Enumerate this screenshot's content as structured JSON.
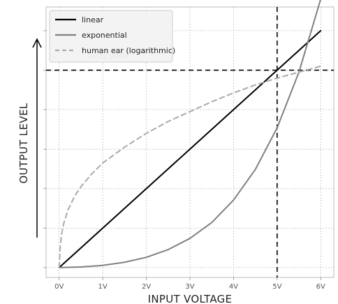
{
  "chart_data": {
    "type": "line",
    "xlabel": "INPUT VOLTAGE",
    "ylabel": "OUTPUT LEVEL",
    "x_ticks": [
      "0V",
      "1V",
      "2V",
      "3V",
      "4V",
      "5V",
      "6V"
    ],
    "xlim": [
      -0.3,
      6.3
    ],
    "ylim": [
      -0.05,
      1.32
    ],
    "grid": true,
    "y_tick_labels_shown": false,
    "legend": "top-left",
    "series": [
      {
        "name": "linear",
        "color": "#000000",
        "dash": "solid",
        "x": [
          0,
          1,
          2,
          3,
          4,
          5,
          6
        ],
        "y": [
          0,
          0.2,
          0.4,
          0.6,
          0.8,
          1.0,
          1.2
        ]
      },
      {
        "name": "exponential",
        "color": "#808080",
        "dash": "solid",
        "x": [
          0,
          0.5,
          1,
          1.5,
          2,
          2.5,
          3,
          3.5,
          4,
          4.5,
          5,
          5.5,
          6
        ],
        "y": [
          0,
          0.003,
          0.011,
          0.027,
          0.052,
          0.091,
          0.148,
          0.228,
          0.342,
          0.497,
          0.708,
          0.99,
          1.36
        ]
      },
      {
        "name": "human ear (logarithmic)",
        "color": "#aaaaaa",
        "dash": "dashed",
        "x": [
          0,
          0.02,
          0.05,
          0.1,
          0.2,
          0.35,
          0.5,
          0.75,
          1,
          1.5,
          2,
          2.5,
          3,
          3.5,
          4,
          4.5,
          5,
          5.5,
          6
        ],
        "y": [
          0,
          0.09,
          0.16,
          0.22,
          0.29,
          0.36,
          0.41,
          0.475,
          0.53,
          0.61,
          0.68,
          0.74,
          0.79,
          0.84,
          0.885,
          0.925,
          0.96,
          0.99,
          1.02
        ]
      }
    ],
    "reference_lines": {
      "vertical_x": 5,
      "horizontal_y": 1.0,
      "color": "#000000",
      "dash": "dashed"
    },
    "annotations": [
      {
        "text": "unity point",
        "x": 0.65,
        "y": 1.06
      }
    ]
  }
}
